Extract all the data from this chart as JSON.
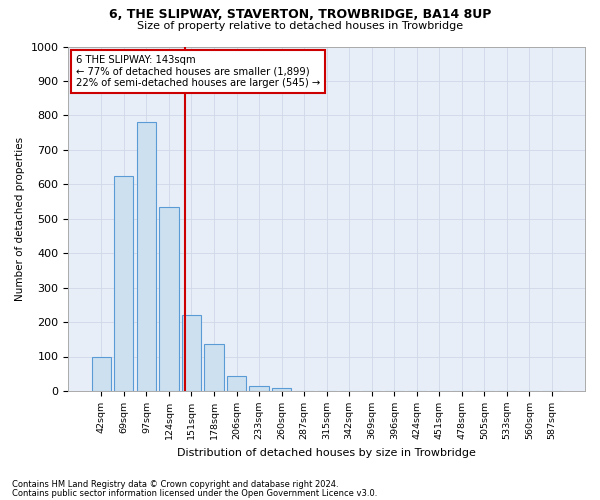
{
  "title1": "6, THE SLIPWAY, STAVERTON, TROWBRIDGE, BA14 8UP",
  "title2": "Size of property relative to detached houses in Trowbridge",
  "xlabel": "Distribution of detached houses by size in Trowbridge",
  "ylabel": "Number of detached properties",
  "bar_labels": [
    "42sqm",
    "69sqm",
    "97sqm",
    "124sqm",
    "151sqm",
    "178sqm",
    "206sqm",
    "233sqm",
    "260sqm",
    "287sqm",
    "315sqm",
    "342sqm",
    "369sqm",
    "396sqm",
    "424sqm",
    "451sqm",
    "478sqm",
    "505sqm",
    "533sqm",
    "560sqm",
    "587sqm"
  ],
  "bar_values": [
    100,
    625,
    780,
    535,
    220,
    135,
    42,
    13,
    10,
    0,
    0,
    0,
    0,
    0,
    0,
    0,
    0,
    0,
    0,
    0,
    0
  ],
  "bar_color": "#cce0f0",
  "bar_edge_color": "#5b9bd5",
  "marker_label": "6 THE SLIPWAY: 143sqm",
  "annotation_line1": "← 77% of detached houses are smaller (1,899)",
  "annotation_line2": "22% of semi-detached houses are larger (545) →",
  "vline_x": 3.72,
  "vline_color": "#cc0000",
  "annotation_box_color": "#cc0000",
  "grid_color": "#d0d8e8",
  "background_color": "#e8eef8",
  "ylim": [
    0,
    1000
  ],
  "yticks": [
    0,
    100,
    200,
    300,
    400,
    500,
    600,
    700,
    800,
    900,
    1000
  ],
  "footnote1": "Contains HM Land Registry data © Crown copyright and database right 2024.",
  "footnote2": "Contains public sector information licensed under the Open Government Licence v3.0."
}
